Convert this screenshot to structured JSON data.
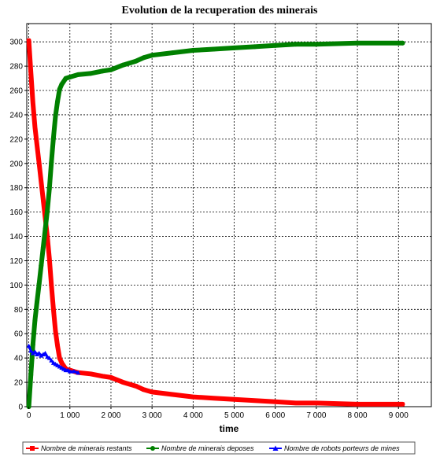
{
  "chart_data": {
    "type": "line",
    "title": "Evolution de la recuperation des minerais",
    "xlabel": "time",
    "ylabel": "",
    "xlim": [
      -50,
      9800
    ],
    "ylim": [
      0,
      315
    ],
    "x_ticks": [
      0,
      1000,
      2000,
      3000,
      4000,
      5000,
      6000,
      7000,
      8000,
      9000
    ],
    "x_tick_labels": [
      "0",
      "1 000",
      "2 000",
      "3 000",
      "4 000",
      "5 000",
      "6 000",
      "7 000",
      "8 000",
      "9 000"
    ],
    "y_ticks": [
      0,
      20,
      40,
      60,
      80,
      100,
      120,
      140,
      160,
      180,
      200,
      220,
      240,
      260,
      280,
      300
    ],
    "grid": true,
    "legend_position": "bottom",
    "series": [
      {
        "name": "Nombre de minerais restants",
        "color": "#ff0000",
        "marker": "square",
        "x": [
          0,
          50,
          100,
          150,
          200,
          250,
          300,
          350,
          400,
          450,
          500,
          550,
          600,
          650,
          700,
          750,
          800,
          900,
          1000,
          1200,
          1500,
          1800,
          2000,
          2300,
          2600,
          2800,
          3000,
          3500,
          4000,
          4500,
          5000,
          5500,
          6000,
          6500,
          7000,
          8000,
          9100
        ],
        "y": [
          301,
          275,
          250,
          230,
          215,
          200,
          185,
          170,
          155,
          140,
          122,
          100,
          80,
          62,
          50,
          40,
          36,
          31,
          30,
          28,
          27,
          25,
          24,
          20,
          17,
          14,
          12,
          10,
          8,
          7,
          6,
          5,
          4,
          3,
          3,
          2,
          2
        ]
      },
      {
        "name": "Nombre de minerais deposes",
        "color": "#008000",
        "marker": "circle",
        "x": [
          0,
          50,
          100,
          150,
          200,
          250,
          300,
          350,
          400,
          450,
          500,
          550,
          600,
          650,
          700,
          750,
          800,
          900,
          1000,
          1200,
          1500,
          1800,
          2000,
          2300,
          2600,
          2800,
          3000,
          3500,
          4000,
          4500,
          5000,
          5500,
          6000,
          6500,
          7000,
          8000,
          9100
        ],
        "y": [
          0,
          26,
          51,
          71,
          86,
          101,
          116,
          131,
          146,
          161,
          179,
          201,
          221,
          239,
          251,
          261,
          265,
          270,
          271,
          273,
          274,
          276,
          277,
          281,
          284,
          287,
          289,
          291,
          293,
          294,
          295,
          296,
          297,
          298,
          298,
          299,
          299
        ]
      },
      {
        "name": "Nombre de robots porteurs de mines",
        "color": "#0000ff",
        "marker": "triangle",
        "x": [
          0,
          50,
          100,
          150,
          200,
          250,
          300,
          350,
          400,
          450,
          500,
          550,
          600,
          650,
          700,
          750,
          800,
          850,
          900,
          950,
          1000,
          1100,
          1200
        ],
        "y": [
          50,
          46,
          44,
          45,
          43,
          44,
          42,
          43,
          44,
          41,
          40,
          38,
          36,
          35,
          34,
          33,
          32,
          31,
          30,
          30,
          29,
          29,
          28
        ]
      }
    ]
  }
}
